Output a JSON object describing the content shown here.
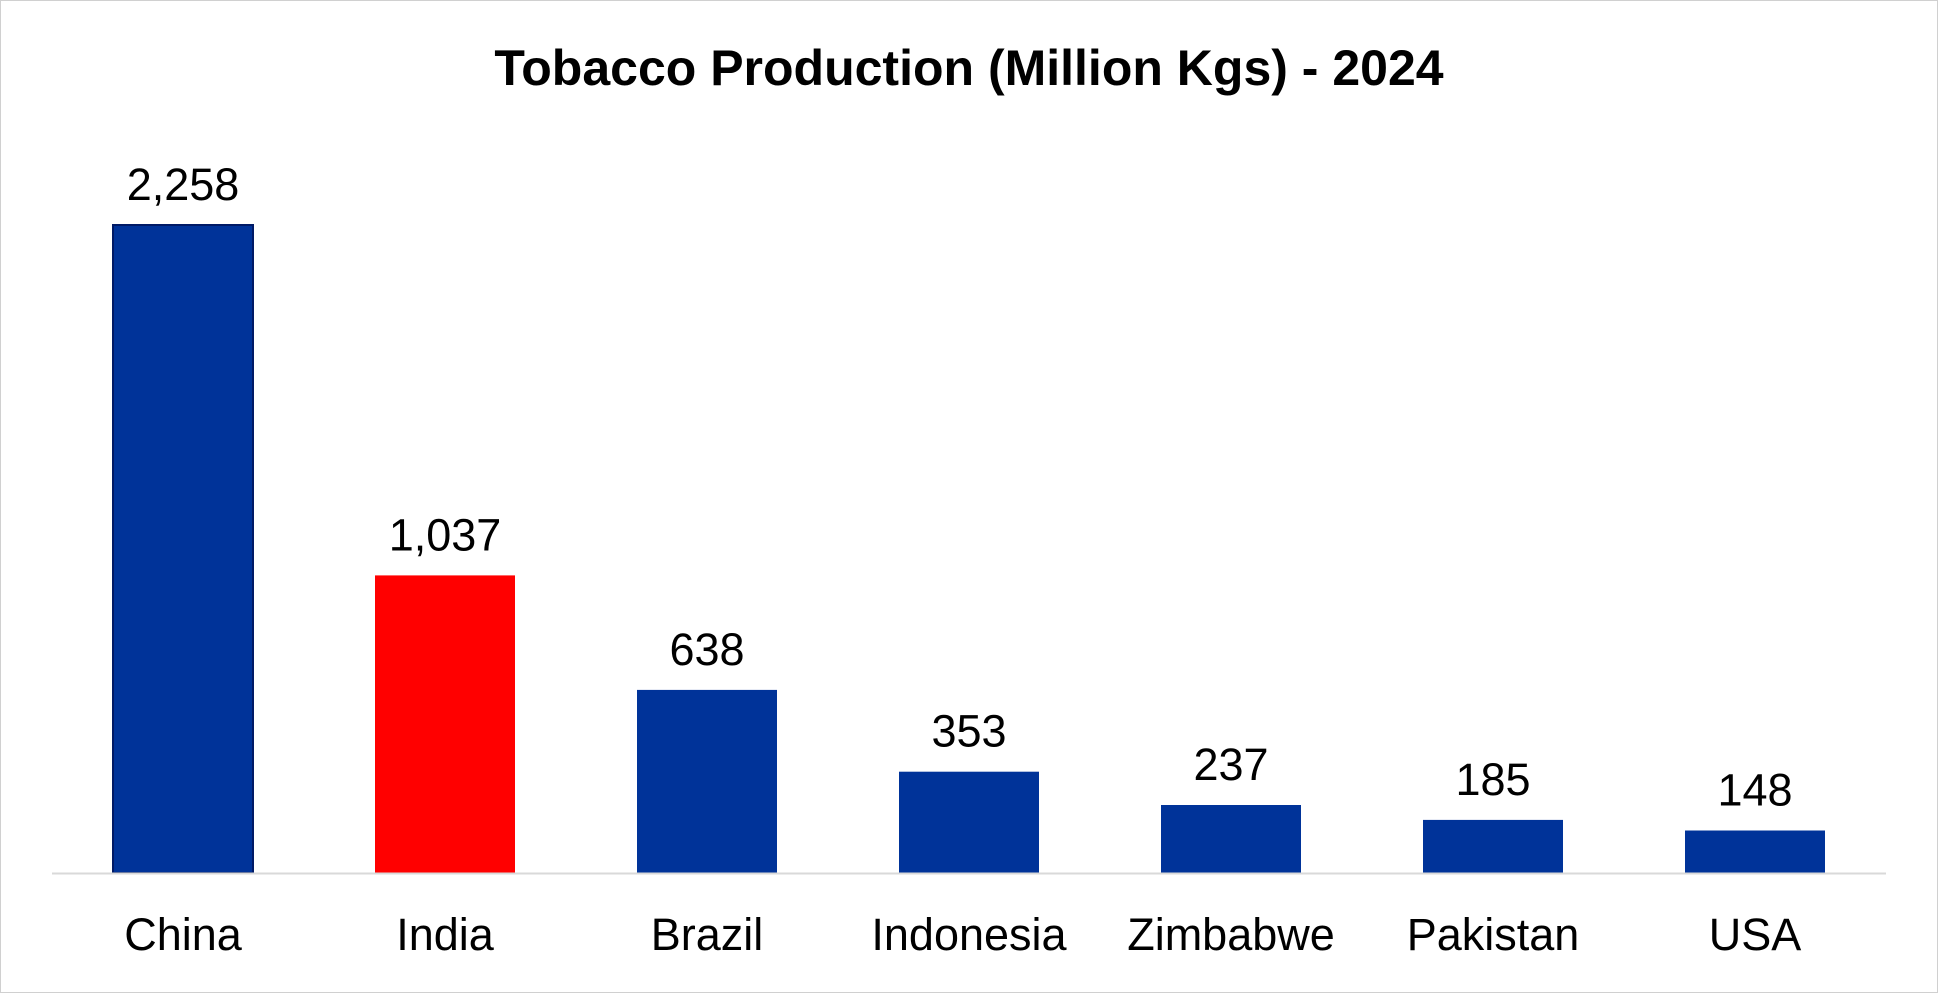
{
  "chart_data": {
    "type": "bar",
    "title": "Tobacco Production (Million Kgs) - 2024",
    "xlabel": "",
    "ylabel": "",
    "categories": [
      "China",
      "India",
      "Brazil",
      "Indonesia",
      "Zimbabwe",
      "Pakistan",
      "USA"
    ],
    "values": [
      2258,
      1037,
      638,
      353,
      237,
      185,
      148
    ],
    "data_labels": [
      "2,258",
      "1,037",
      "638",
      "353",
      "237",
      "185",
      "148"
    ],
    "ylim": [
      0,
      2258
    ],
    "grid": false,
    "legend": "none",
    "colors": {
      "default_bar": "#003399",
      "highlight_bar": "#ff0000",
      "bar_border": "#001a66",
      "axis": "#d9d9d9"
    },
    "highlight_category": "India"
  }
}
